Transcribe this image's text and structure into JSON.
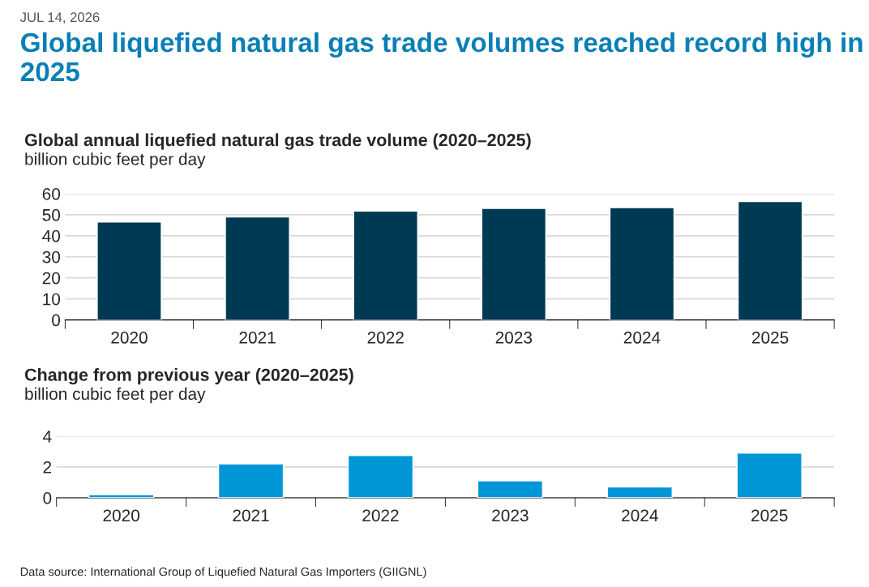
{
  "chart_data": [
    {
      "type": "bar",
      "title": "Global annual liquefied natural gas trade volume (2020–2025)",
      "subtitle": "billion cubic feet per day",
      "annotations": [
        "JUL 14, 2026",
        "Global liquefied natural gas trade volumes reached record high in 2025"
      ],
      "categories": [
        "2020",
        "2021",
        "2022",
        "2023",
        "2024",
        "2025"
      ],
      "values": [
        46.6,
        49.0,
        51.8,
        53.0,
        53.4,
        56.3
      ],
      "color": "#003953",
      "ylim": [
        0,
        60
      ],
      "yticks": [
        0,
        10,
        20,
        30,
        40,
        50,
        60
      ],
      "grid": "y"
    },
    {
      "type": "bar",
      "title": "Change from previous year (2020–2025)",
      "subtitle": "billion cubic feet per day",
      "annotations": [
        "Data source: International Group of Liquefied Natural Gas Importers (GIIGNL)"
      ],
      "categories": [
        "2020",
        "2021",
        "2022",
        "2023",
        "2024",
        "2025"
      ],
      "values": [
        0.2,
        2.2,
        2.75,
        1.1,
        0.7,
        2.9
      ],
      "color": "#0096d7",
      "ylim": [
        0,
        4
      ],
      "yticks": [
        0,
        2,
        4
      ],
      "grid": "y"
    }
  ]
}
